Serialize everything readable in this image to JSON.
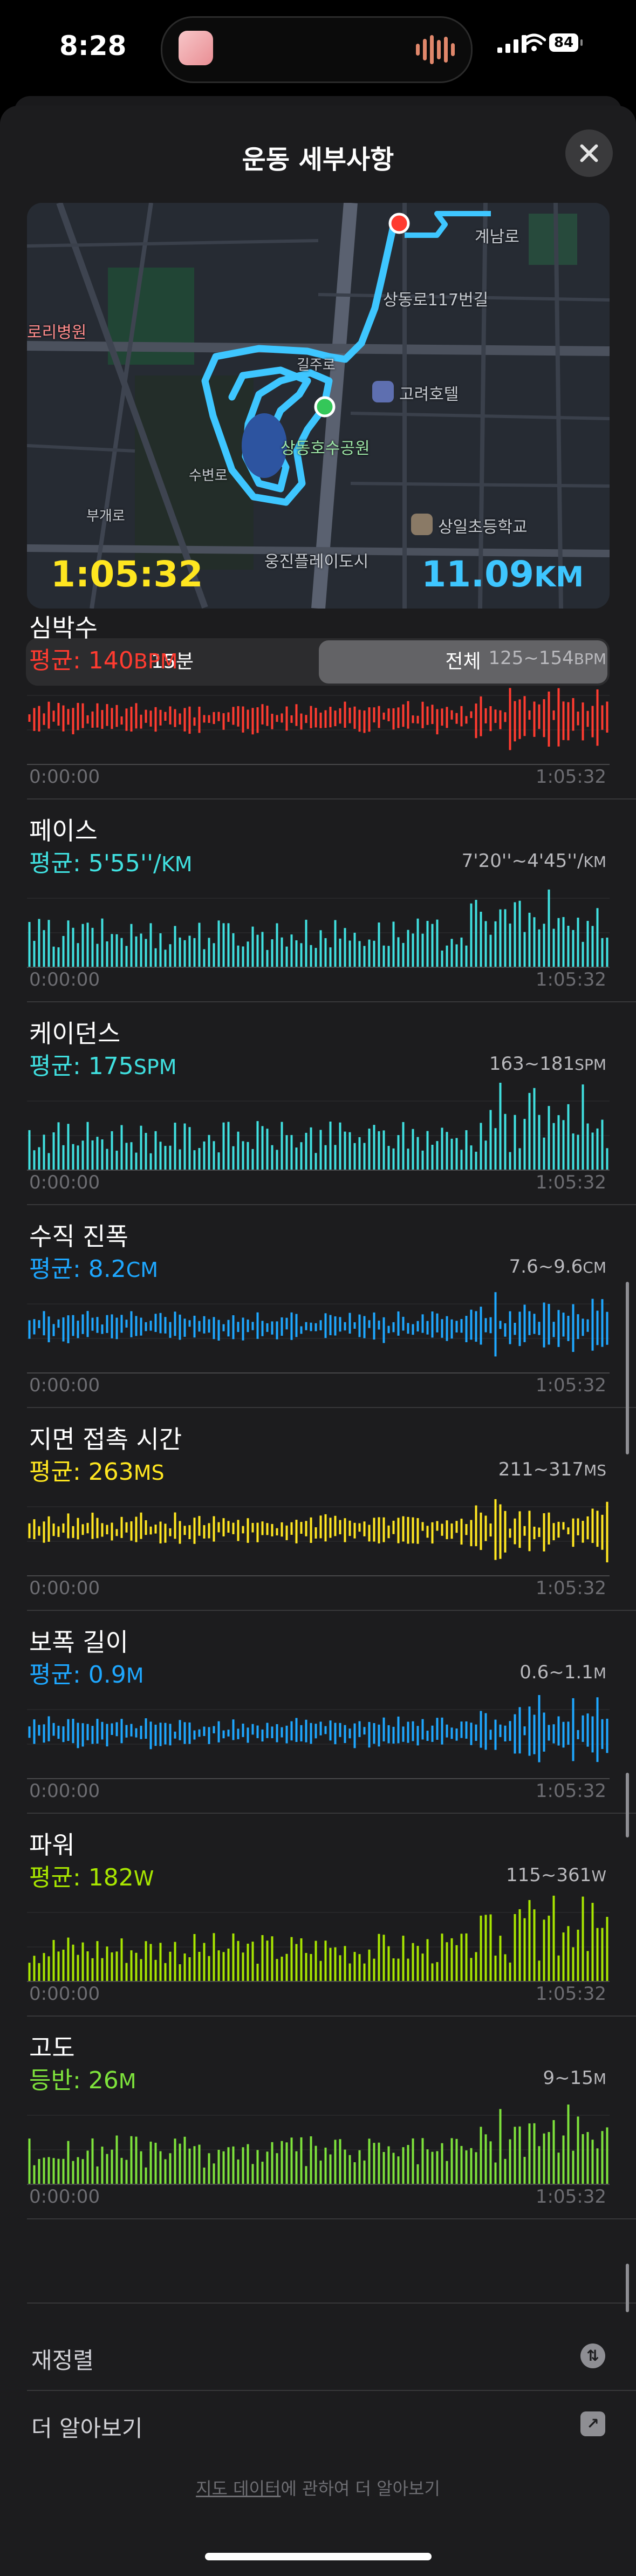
{
  "status": {
    "time": "8:28",
    "battery": "84"
  },
  "sheet": {
    "title": "운동 세부사항"
  },
  "map": {
    "elapsed": "1:05:32",
    "distance": "11.09",
    "distance_unit": "KM",
    "labels": [
      "계남로",
      "상동로117번길",
      "로리병원",
      "길주로",
      "고려호텔",
      "상동호수공원",
      "부개로",
      "수변로",
      "상일초등학교",
      "웅진플레이도시"
    ]
  },
  "segment": {
    "options": [
      "15분",
      "전체"
    ],
    "selected": "전체"
  },
  "metrics": [
    {
      "name": "심박수",
      "avg_label": "평균: 140",
      "avg_unit": "BPM",
      "range": "125~154",
      "range_unit": "BPM",
      "color": "#ff3b30",
      "style": "center",
      "start": "0:00:00",
      "end": "1:05:32"
    },
    {
      "name": "페이스",
      "avg_label": "평균: 5'55''/",
      "avg_unit": "KM",
      "range": "7'20''~4'45''/",
      "range_unit": "KM",
      "color": "#40e0e0",
      "style": "bottom",
      "start": "0:00:00",
      "end": "1:05:32"
    },
    {
      "name": "케이던스",
      "avg_label": "평균: 175",
      "avg_unit": "SPM",
      "range": "163~181",
      "range_unit": "SPM",
      "color": "#40e0e0",
      "style": "bottom",
      "start": "0:00:00",
      "end": "1:05:32"
    },
    {
      "name": "수직 진폭",
      "avg_label": "평균: 8.2",
      "avg_unit": "CM",
      "range": "7.6~9.6",
      "range_unit": "CM",
      "color": "#1ea7ff",
      "style": "center",
      "start": "0:00:00",
      "end": "1:05:32"
    },
    {
      "name": "지면 접촉 시간",
      "avg_label": "평균: 263",
      "avg_unit": "MS",
      "range": "211~317",
      "range_unit": "MS",
      "color": "#ffe620",
      "style": "center",
      "start": "0:00:00",
      "end": "1:05:32"
    },
    {
      "name": "보폭 길이",
      "avg_label": "평균: 0.9",
      "avg_unit": "M",
      "range": "0.6~1.1",
      "range_unit": "M",
      "color": "#1ea7ff",
      "style": "center",
      "start": "0:00:00",
      "end": "1:05:32"
    },
    {
      "name": "파워",
      "avg_label": "평균: 182",
      "avg_unit": "W",
      "range": "115~361",
      "range_unit": "W",
      "color": "#a8e600",
      "style": "bottom",
      "start": "0:00:00",
      "end": "1:05:32"
    },
    {
      "name": "고도",
      "avg_label": "등반: 26",
      "avg_unit": "M",
      "range": "9~15",
      "range_unit": "M",
      "color": "#7ee33c",
      "style": "bottom",
      "start": "0:00:00",
      "end": "1:05:32"
    }
  ],
  "actions": {
    "reorder": "재정렬",
    "learn_more": "더 알아보기"
  },
  "footer": {
    "link": "지도 데이터",
    "text": "에 관하여 더 알아보기"
  },
  "colors": {
    "background": "#1c1c1e",
    "route": "#3ec6ff",
    "start_dot": "#34c759",
    "end_dot": "#ff3b30"
  }
}
